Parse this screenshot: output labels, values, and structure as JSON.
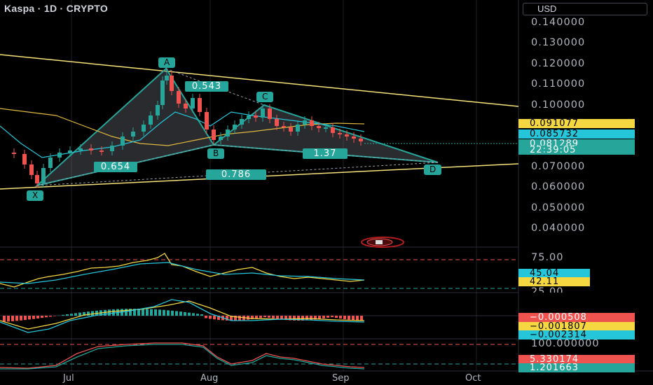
{
  "header": {
    "title": "Kaspa · 1D · CRYPTO",
    "currency": "USD"
  },
  "price_axis": {
    "labels": [
      "0.140000",
      "0.130000",
      "0.120000",
      "0.110000",
      "0.100000",
      "0.070000",
      "0.060000",
      "0.050000",
      "0.040000"
    ],
    "tags": [
      {
        "value": "0.091077",
        "color": "#f5d742"
      },
      {
        "value": "0.085732",
        "color": "#26c6da"
      },
      {
        "value": "0.081289",
        "color": "#26a69a"
      },
      {
        "value": "22:39:05",
        "color": "#26a69a"
      }
    ]
  },
  "rsi": {
    "levels": [
      "75.00",
      "25.00"
    ],
    "tags": [
      {
        "value": "45.04",
        "color": "#26c6da"
      },
      {
        "value": "42.11",
        "color": "#f5d742"
      }
    ]
  },
  "macd": {
    "tags": [
      {
        "value": "−0.000508",
        "color": "#ef5350"
      },
      {
        "value": "−0.001807",
        "color": "#f5d742"
      },
      {
        "value": "−0.002314",
        "color": "#26c6da"
      }
    ]
  },
  "stoch": {
    "level": "100.000000",
    "tags": [
      {
        "value": "5.330174",
        "color": "#ef5350"
      },
      {
        "value": "1.201663",
        "color": "#26a69a"
      }
    ]
  },
  "pattern": {
    "points": [
      "A",
      "B",
      "C",
      "D",
      "X"
    ],
    "ratios": [
      "0.543",
      "0.654",
      "1.37",
      "0.786"
    ]
  },
  "time_axis": [
    "Jul",
    "Aug",
    "Sep",
    "Oct"
  ],
  "chart_data": {
    "type": "candlestick",
    "symbol": "Kaspa",
    "interval": "1D",
    "indicators": [
      "RSI",
      "MACD",
      "Stochastic"
    ]
  }
}
